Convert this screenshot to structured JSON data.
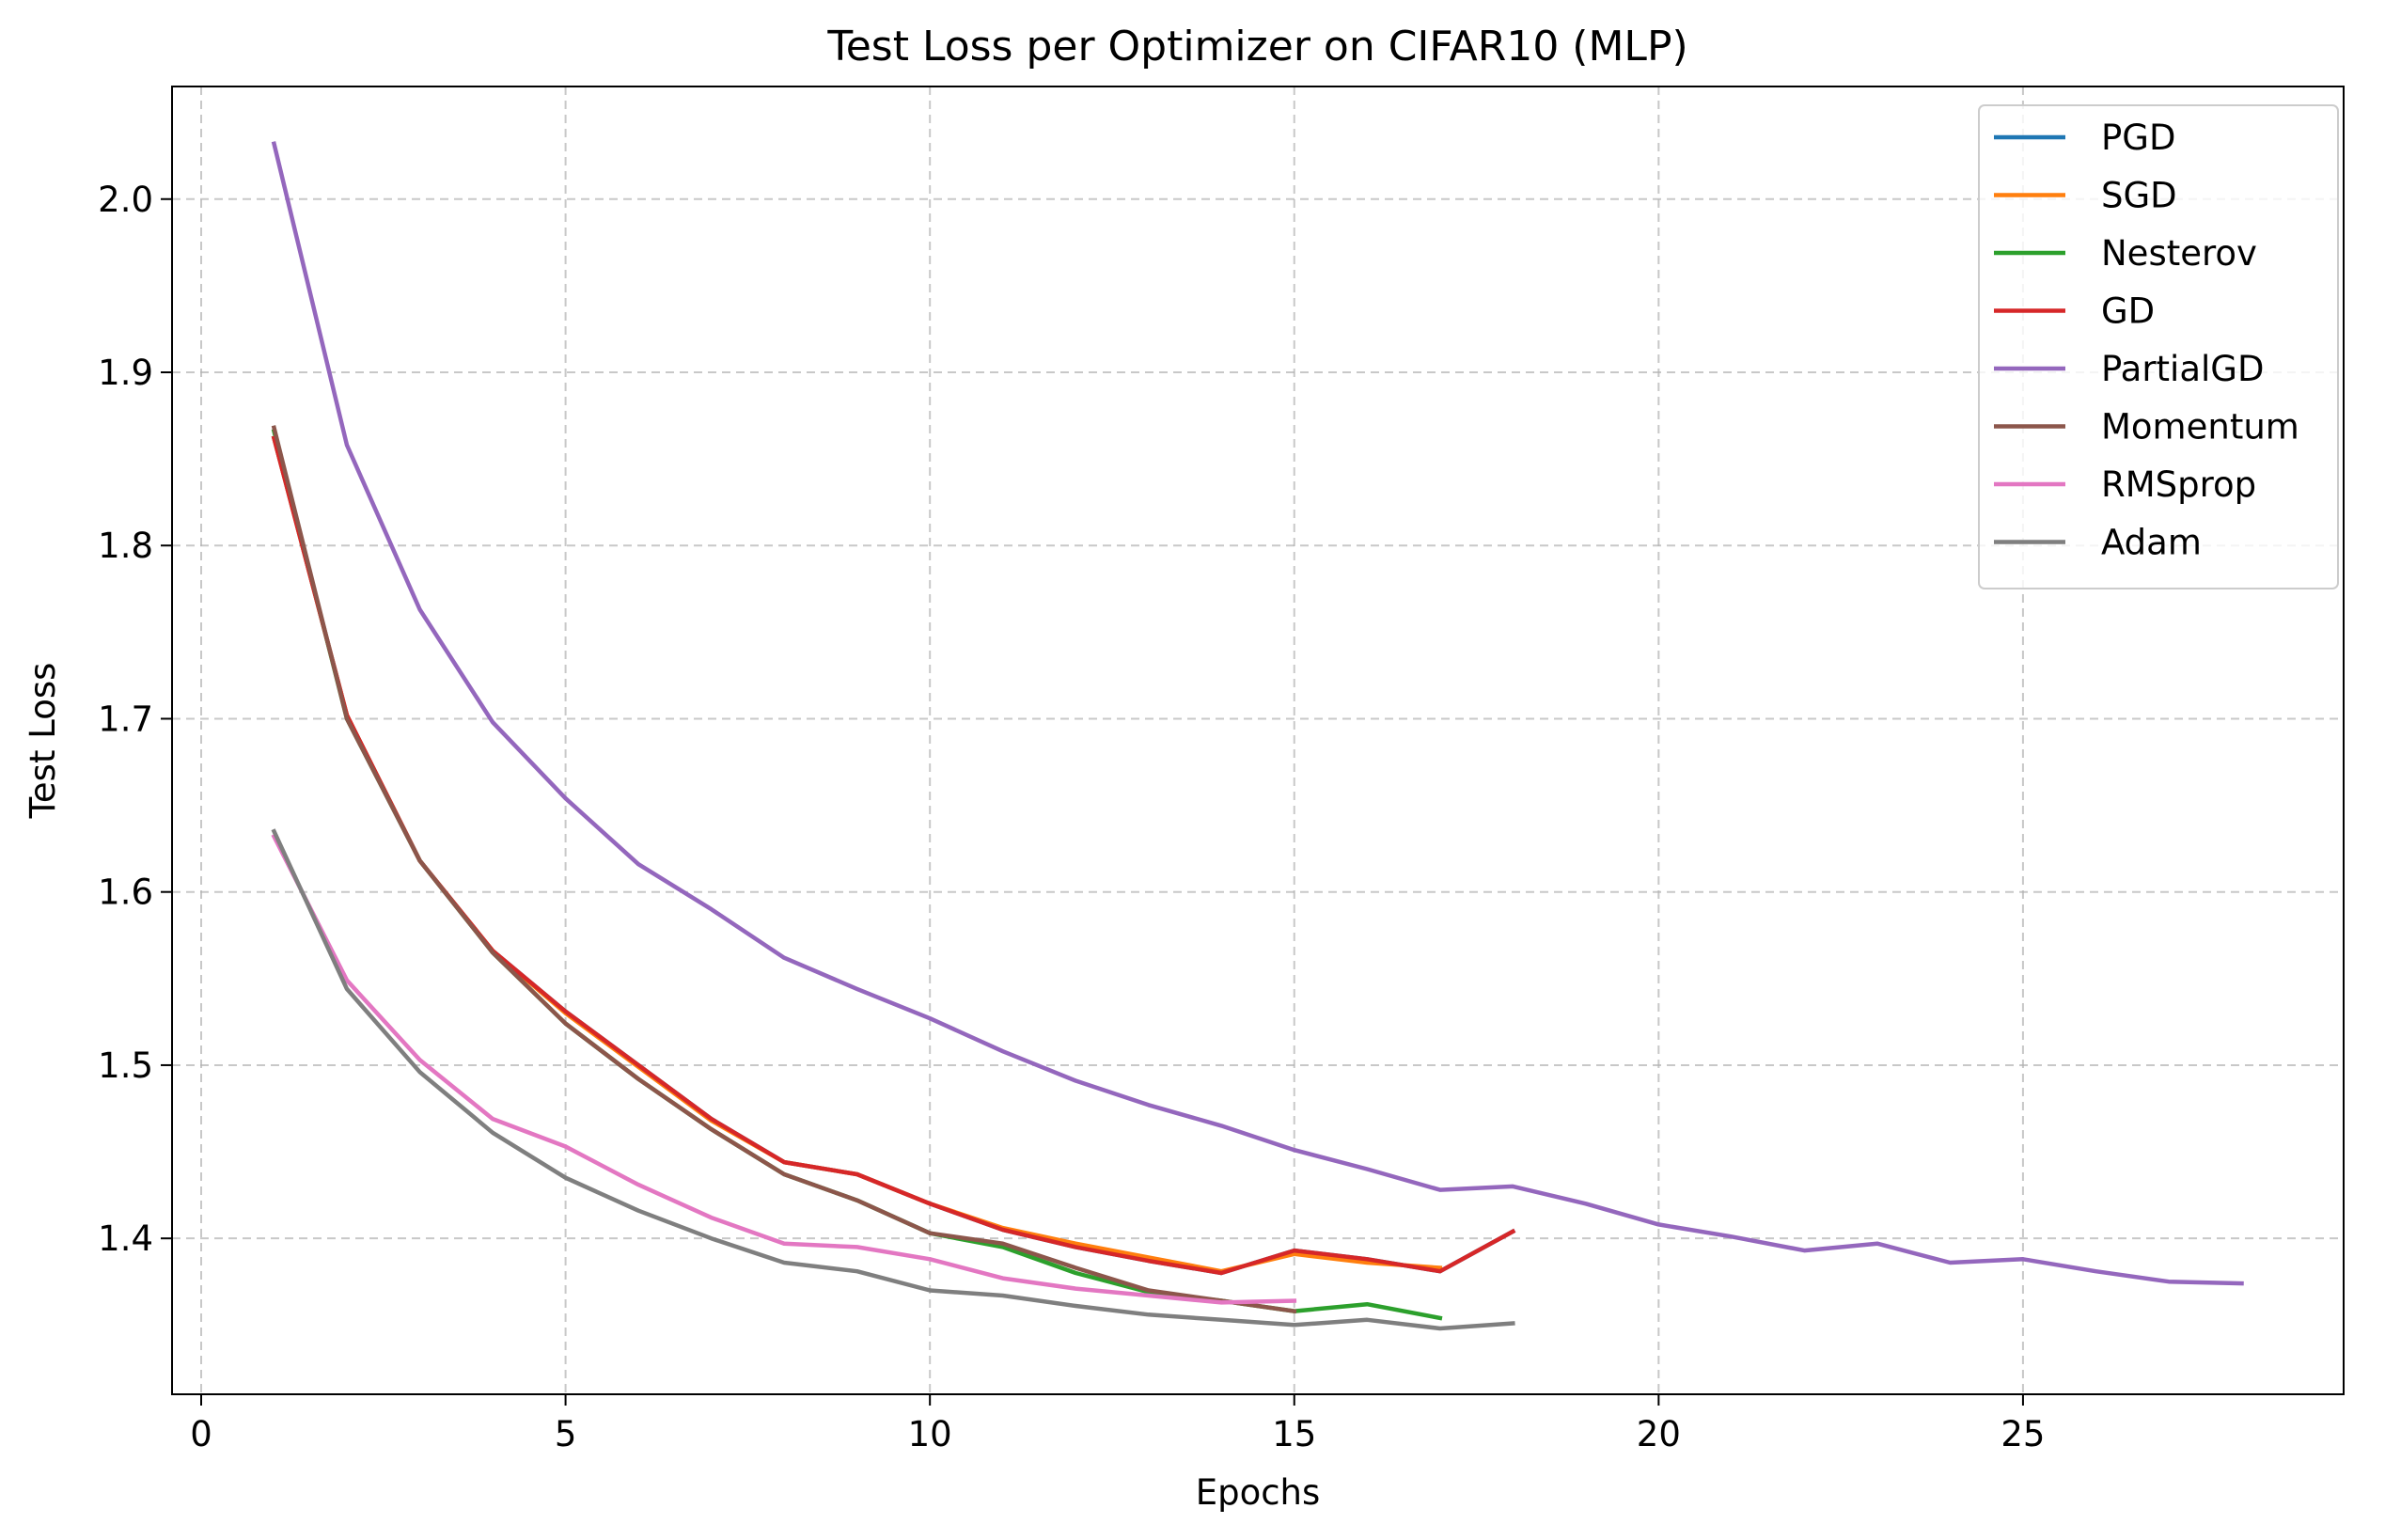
{
  "chart_data": {
    "type": "line",
    "title": "Test Loss per Optimizer on CIFAR10 (MLP)",
    "xlabel": "Epochs",
    "ylabel": "Test Loss",
    "xlim": [
      -0.4,
      29.4
    ],
    "ylim": [
      1.31,
      2.065
    ],
    "xticks": [
      0,
      5,
      10,
      15,
      20,
      25
    ],
    "yticks": [
      1.4,
      1.5,
      1.6,
      1.7,
      1.8,
      1.9,
      2.0
    ],
    "xtick_labels": [
      "0",
      "5",
      "10",
      "15",
      "20",
      "25"
    ],
    "ytick_labels": [
      "1.4",
      "1.5",
      "1.6",
      "1.7",
      "1.8",
      "1.9",
      "2.0"
    ],
    "grid": true,
    "legend_position": "top-right",
    "series": [
      {
        "name": "PGD",
        "color": "#1f77b4",
        "x": [
          1,
          2,
          3,
          4,
          5,
          6,
          7,
          8,
          9,
          10,
          11,
          12,
          13,
          14,
          15,
          16,
          17,
          18
        ],
        "y": [
          1.862,
          1.702,
          1.618,
          1.566,
          1.531,
          1.5,
          1.469,
          1.444,
          1.437,
          1.42,
          1.405,
          1.395,
          1.387,
          1.38,
          1.393,
          1.388,
          1.381,
          1.404
        ]
      },
      {
        "name": "SGD",
        "color": "#ff7f0e",
        "x": [
          1,
          2,
          3,
          4,
          5,
          6,
          7,
          8,
          9,
          10,
          11,
          12,
          13,
          14,
          15,
          16,
          17
        ],
        "y": [
          1.862,
          1.702,
          1.618,
          1.566,
          1.53,
          1.499,
          1.468,
          1.444,
          1.437,
          1.42,
          1.406,
          1.397,
          1.389,
          1.381,
          1.391,
          1.386,
          1.383
        ]
      },
      {
        "name": "Nesterov",
        "color": "#2ca02c",
        "x": [
          1,
          2,
          3,
          4,
          5,
          6,
          7,
          8,
          9,
          10,
          11,
          12,
          13,
          14,
          15,
          16,
          17
        ],
        "y": [
          1.866,
          1.7,
          1.618,
          1.565,
          1.524,
          1.492,
          1.463,
          1.437,
          1.422,
          1.403,
          1.395,
          1.38,
          1.369,
          1.364,
          1.358,
          1.362,
          1.354
        ]
      },
      {
        "name": "GD",
        "color": "#d62728",
        "x": [
          1,
          2,
          3,
          4,
          5,
          6,
          7,
          8,
          9,
          10,
          11,
          12,
          13,
          14,
          15,
          16,
          17,
          18
        ],
        "y": [
          1.862,
          1.702,
          1.618,
          1.566,
          1.531,
          1.5,
          1.469,
          1.444,
          1.437,
          1.42,
          1.405,
          1.395,
          1.387,
          1.38,
          1.393,
          1.388,
          1.381,
          1.404
        ]
      },
      {
        "name": "PartialGD",
        "color": "#9467bd",
        "x": [
          1,
          2,
          3,
          4,
          5,
          6,
          7,
          8,
          9,
          10,
          11,
          12,
          13,
          14,
          15,
          16,
          17,
          18,
          19,
          20,
          21,
          22,
          23,
          24,
          25,
          26,
          27,
          28
        ],
        "y": [
          2.032,
          1.858,
          1.763,
          1.698,
          1.654,
          1.616,
          1.59,
          1.562,
          1.544,
          1.527,
          1.508,
          1.491,
          1.477,
          1.465,
          1.451,
          1.44,
          1.428,
          1.43,
          1.42,
          1.408,
          1.401,
          1.393,
          1.397,
          1.386,
          1.388,
          1.381,
          1.375,
          1.374
        ]
      },
      {
        "name": "Momentum",
        "color": "#8c564b",
        "x": [
          1,
          2,
          3,
          4,
          5,
          6,
          7,
          8,
          9,
          10,
          11,
          12,
          13,
          14,
          15
        ],
        "y": [
          1.868,
          1.7,
          1.618,
          1.565,
          1.524,
          1.492,
          1.463,
          1.437,
          1.422,
          1.403,
          1.397,
          1.383,
          1.37,
          1.364,
          1.358
        ]
      },
      {
        "name": "RMSprop",
        "color": "#e377c2",
        "x": [
          1,
          2,
          3,
          4,
          5,
          6,
          7,
          8,
          9,
          10,
          11,
          12,
          13,
          14,
          15
        ],
        "y": [
          1.632,
          1.549,
          1.503,
          1.469,
          1.453,
          1.431,
          1.412,
          1.397,
          1.395,
          1.388,
          1.377,
          1.371,
          1.367,
          1.363,
          1.364
        ]
      },
      {
        "name": "Adam",
        "color": "#7f7f7f",
        "x": [
          1,
          2,
          3,
          4,
          5,
          6,
          7,
          8,
          9,
          10,
          11,
          12,
          13,
          14,
          15,
          16,
          17,
          18
        ],
        "y": [
          1.635,
          1.544,
          1.496,
          1.461,
          1.435,
          1.416,
          1.4,
          1.386,
          1.381,
          1.37,
          1.367,
          1.361,
          1.356,
          1.353,
          1.35,
          1.353,
          1.348,
          1.351
        ]
      }
    ]
  }
}
